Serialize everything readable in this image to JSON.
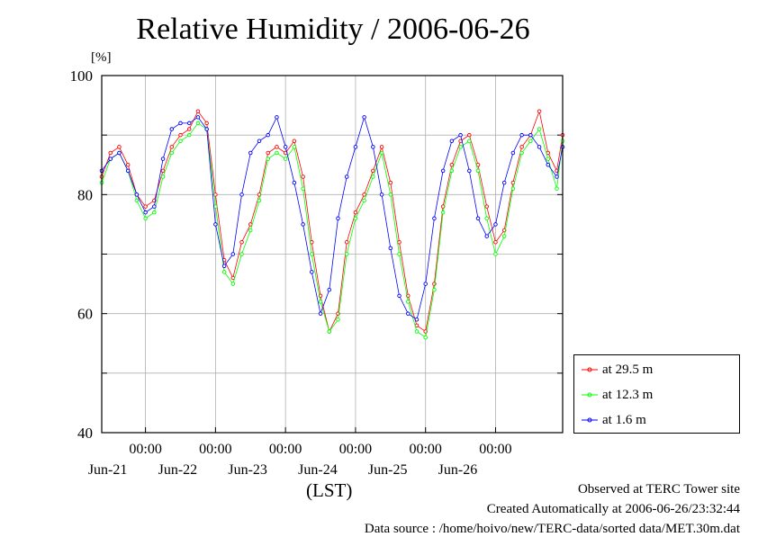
{
  "chart_data": {
    "type": "line",
    "title": "Relative Humidity / 2006-06-26",
    "ylabel": "[%]",
    "xlabel": "(LST)",
    "ylim": [
      40,
      100
    ],
    "yticks": [
      40,
      60,
      80,
      100
    ],
    "xlim": [
      "2006-06-20T09:00",
      "2006-06-26T23:00"
    ],
    "xticks": [
      {
        "time": "2006-06-21T00:00",
        "hour_label": "00:00",
        "date_label": "Jun-21"
      },
      {
        "time": "2006-06-22T00:00",
        "hour_label": "00:00",
        "date_label": "Jun-22"
      },
      {
        "time": "2006-06-23T00:00",
        "hour_label": "00:00",
        "date_label": "Jun-23"
      },
      {
        "time": "2006-06-24T00:00",
        "hour_label": "00:00",
        "date_label": "Jun-24"
      },
      {
        "time": "2006-06-25T00:00",
        "hour_label": "00:00",
        "date_label": "Jun-25"
      },
      {
        "time": "2006-06-26T00:00",
        "hour_label": "00:00",
        "date_label": "Jun-26"
      }
    ],
    "grid": true,
    "legend_position": "bottom-right outside",
    "series": [
      {
        "name": "at 29.5 m",
        "color": "#ff0000",
        "points": [
          [
            "2006-06-20T09:00",
            83
          ],
          [
            "2006-06-20T12:00",
            87
          ],
          [
            "2006-06-20T15:00",
            88
          ],
          [
            "2006-06-20T18:00",
            85
          ],
          [
            "2006-06-20T21:00",
            80
          ],
          [
            "2006-06-21T00:00",
            78
          ],
          [
            "2006-06-21T03:00",
            79
          ],
          [
            "2006-06-21T06:00",
            84
          ],
          [
            "2006-06-21T09:00",
            88
          ],
          [
            "2006-06-21T12:00",
            90
          ],
          [
            "2006-06-21T15:00",
            91
          ],
          [
            "2006-06-21T18:00",
            94
          ],
          [
            "2006-06-21T21:00",
            92
          ],
          [
            "2006-06-22T00:00",
            80
          ],
          [
            "2006-06-22T03:00",
            69
          ],
          [
            "2006-06-22T06:00",
            66
          ],
          [
            "2006-06-22T09:00",
            72
          ],
          [
            "2006-06-22T12:00",
            75
          ],
          [
            "2006-06-22T15:00",
            80
          ],
          [
            "2006-06-22T18:00",
            87
          ],
          [
            "2006-06-22T21:00",
            88
          ],
          [
            "2006-06-23T00:00",
            87
          ],
          [
            "2006-06-23T03:00",
            89
          ],
          [
            "2006-06-23T06:00",
            83
          ],
          [
            "2006-06-23T09:00",
            72
          ],
          [
            "2006-06-23T12:00",
            63
          ],
          [
            "2006-06-23T15:00",
            57
          ],
          [
            "2006-06-23T18:00",
            60
          ],
          [
            "2006-06-23T21:00",
            72
          ],
          [
            "2006-06-24T00:00",
            77
          ],
          [
            "2006-06-24T03:00",
            80
          ],
          [
            "2006-06-24T06:00",
            84
          ],
          [
            "2006-06-24T09:00",
            88
          ],
          [
            "2006-06-24T12:00",
            82
          ],
          [
            "2006-06-24T15:00",
            72
          ],
          [
            "2006-06-24T18:00",
            63
          ],
          [
            "2006-06-24T21:00",
            58
          ],
          [
            "2006-06-25T00:00",
            57
          ],
          [
            "2006-06-25T03:00",
            65
          ],
          [
            "2006-06-25T06:00",
            78
          ],
          [
            "2006-06-25T09:00",
            85
          ],
          [
            "2006-06-25T12:00",
            89
          ],
          [
            "2006-06-25T15:00",
            90
          ],
          [
            "2006-06-25T18:00",
            85
          ],
          [
            "2006-06-25T21:00",
            78
          ],
          [
            "2006-06-26T00:00",
            72
          ],
          [
            "2006-06-26T03:00",
            74
          ],
          [
            "2006-06-26T06:00",
            82
          ],
          [
            "2006-06-26T09:00",
            88
          ],
          [
            "2006-06-26T12:00",
            90
          ],
          [
            "2006-06-26T15:00",
            94
          ],
          [
            "2006-06-26T18:00",
            87
          ],
          [
            "2006-06-26T21:00",
            84
          ],
          [
            "2006-06-26T23:00",
            90
          ]
        ]
      },
      {
        "name": "at 12.3 m",
        "color": "#00ff00",
        "points": [
          [
            "2006-06-20T09:00",
            82
          ],
          [
            "2006-06-20T12:00",
            86
          ],
          [
            "2006-06-20T15:00",
            87
          ],
          [
            "2006-06-20T18:00",
            84
          ],
          [
            "2006-06-20T21:00",
            79
          ],
          [
            "2006-06-21T00:00",
            76
          ],
          [
            "2006-06-21T03:00",
            77
          ],
          [
            "2006-06-21T06:00",
            83
          ],
          [
            "2006-06-21T09:00",
            87
          ],
          [
            "2006-06-21T12:00",
            89
          ],
          [
            "2006-06-21T15:00",
            90
          ],
          [
            "2006-06-21T18:00",
            92
          ],
          [
            "2006-06-21T21:00",
            91
          ],
          [
            "2006-06-22T00:00",
            78
          ],
          [
            "2006-06-22T03:00",
            67
          ],
          [
            "2006-06-22T06:00",
            65
          ],
          [
            "2006-06-22T09:00",
            70
          ],
          [
            "2006-06-22T12:00",
            74
          ],
          [
            "2006-06-22T15:00",
            79
          ],
          [
            "2006-06-22T18:00",
            86
          ],
          [
            "2006-06-22T21:00",
            87
          ],
          [
            "2006-06-23T00:00",
            86
          ],
          [
            "2006-06-23T03:00",
            88
          ],
          [
            "2006-06-23T06:00",
            81
          ],
          [
            "2006-06-23T09:00",
            70
          ],
          [
            "2006-06-23T12:00",
            62
          ],
          [
            "2006-06-23T15:00",
            57
          ],
          [
            "2006-06-23T18:00",
            59
          ],
          [
            "2006-06-23T21:00",
            70
          ],
          [
            "2006-06-24T00:00",
            76
          ],
          [
            "2006-06-24T03:00",
            79
          ],
          [
            "2006-06-24T06:00",
            83
          ],
          [
            "2006-06-24T09:00",
            87
          ],
          [
            "2006-06-24T12:00",
            80
          ],
          [
            "2006-06-24T15:00",
            70
          ],
          [
            "2006-06-24T18:00",
            62
          ],
          [
            "2006-06-24T21:00",
            57
          ],
          [
            "2006-06-25T00:00",
            56
          ],
          [
            "2006-06-25T03:00",
            64
          ],
          [
            "2006-06-25T06:00",
            77
          ],
          [
            "2006-06-25T09:00",
            84
          ],
          [
            "2006-06-25T12:00",
            88
          ],
          [
            "2006-06-25T15:00",
            89
          ],
          [
            "2006-06-25T18:00",
            84
          ],
          [
            "2006-06-25T21:00",
            76
          ],
          [
            "2006-06-26T00:00",
            70
          ],
          [
            "2006-06-26T03:00",
            73
          ],
          [
            "2006-06-26T06:00",
            81
          ],
          [
            "2006-06-26T09:00",
            87
          ],
          [
            "2006-06-26T12:00",
            89
          ],
          [
            "2006-06-26T15:00",
            91
          ],
          [
            "2006-06-26T18:00",
            86
          ],
          [
            "2006-06-26T21:00",
            81
          ],
          [
            "2006-06-26T23:00",
            89
          ]
        ]
      },
      {
        "name": "at 1.6 m",
        "color": "#0000ff",
        "points": [
          [
            "2006-06-20T09:00",
            84
          ],
          [
            "2006-06-20T12:00",
            86
          ],
          [
            "2006-06-20T15:00",
            87
          ],
          [
            "2006-06-20T18:00",
            84
          ],
          [
            "2006-06-20T21:00",
            80
          ],
          [
            "2006-06-21T00:00",
            77
          ],
          [
            "2006-06-21T03:00",
            78
          ],
          [
            "2006-06-21T06:00",
            86
          ],
          [
            "2006-06-21T09:00",
            91
          ],
          [
            "2006-06-21T12:00",
            92
          ],
          [
            "2006-06-21T15:00",
            92
          ],
          [
            "2006-06-21T18:00",
            93
          ],
          [
            "2006-06-21T21:00",
            91
          ],
          [
            "2006-06-22T00:00",
            75
          ],
          [
            "2006-06-22T03:00",
            68
          ],
          [
            "2006-06-22T06:00",
            70
          ],
          [
            "2006-06-22T09:00",
            80
          ],
          [
            "2006-06-22T12:00",
            87
          ],
          [
            "2006-06-22T15:00",
            89
          ],
          [
            "2006-06-22T18:00",
            90
          ],
          [
            "2006-06-22T21:00",
            93
          ],
          [
            "2006-06-23T00:00",
            88
          ],
          [
            "2006-06-23T03:00",
            82
          ],
          [
            "2006-06-23T06:00",
            75
          ],
          [
            "2006-06-23T09:00",
            67
          ],
          [
            "2006-06-23T12:00",
            60
          ],
          [
            "2006-06-23T15:00",
            64
          ],
          [
            "2006-06-23T18:00",
            76
          ],
          [
            "2006-06-23T21:00",
            83
          ],
          [
            "2006-06-24T00:00",
            88
          ],
          [
            "2006-06-24T03:00",
            93
          ],
          [
            "2006-06-24T06:00",
            88
          ],
          [
            "2006-06-24T09:00",
            80
          ],
          [
            "2006-06-24T12:00",
            71
          ],
          [
            "2006-06-24T15:00",
            63
          ],
          [
            "2006-06-24T18:00",
            60
          ],
          [
            "2006-06-24T21:00",
            59
          ],
          [
            "2006-06-25T00:00",
            65
          ],
          [
            "2006-06-25T03:00",
            76
          ],
          [
            "2006-06-25T06:00",
            84
          ],
          [
            "2006-06-25T09:00",
            89
          ],
          [
            "2006-06-25T12:00",
            90
          ],
          [
            "2006-06-25T15:00",
            84
          ],
          [
            "2006-06-25T18:00",
            76
          ],
          [
            "2006-06-25T21:00",
            73
          ],
          [
            "2006-06-26T00:00",
            75
          ],
          [
            "2006-06-26T03:00",
            82
          ],
          [
            "2006-06-26T06:00",
            87
          ],
          [
            "2006-06-26T09:00",
            90
          ],
          [
            "2006-06-26T12:00",
            90
          ],
          [
            "2006-06-26T15:00",
            88
          ],
          [
            "2006-06-26T18:00",
            85
          ],
          [
            "2006-06-26T21:00",
            83
          ],
          [
            "2006-06-26T23:00",
            88
          ]
        ]
      }
    ]
  },
  "footer": {
    "line1": "Observed at TERC Tower site",
    "line2": "Created Automatically at 2006-06-26/23:32:44",
    "line3": "Data source : /home/hoivo/new/TERC-data/sorted  data/MET.30m.dat"
  }
}
